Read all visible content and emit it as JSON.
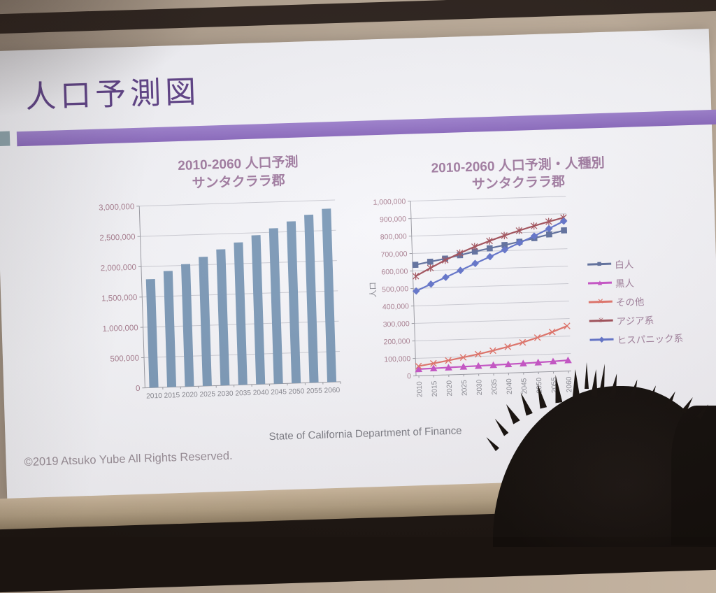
{
  "slide": {
    "title": "人口予測図",
    "source": "State of California Department of Finance",
    "copyright": "©2019 Atsuko Yube All Rights Reserved.",
    "colors": {
      "accent_bar": "#8f6fc2",
      "accent_square": "#8ca3ab",
      "title_text": "#5e4186"
    }
  },
  "chart_data": [
    {
      "type": "bar",
      "title": "2010-2060 人口予測",
      "subtitle": "サンタクララ郡",
      "categories": [
        "2010",
        "2015",
        "2020",
        "2025",
        "2030",
        "2035",
        "2040",
        "2045",
        "2050",
        "2055",
        "2060"
      ],
      "values": [
        1790000,
        1915000,
        2020000,
        2130000,
        2245000,
        2350000,
        2460000,
        2565000,
        2670000,
        2770000,
        2860000
      ],
      "xlabel": "",
      "ylabel": "",
      "ylim": [
        0,
        3000000
      ],
      "ytick_step": 500000,
      "grid": true,
      "bar_color": "#7d9ab8",
      "legend_position": "none"
    },
    {
      "type": "line",
      "title": "2010-2060 人口予測・人種別",
      "subtitle": "サンタクララ郡",
      "categories": [
        "2010",
        "2015",
        "2020",
        "2025",
        "2030",
        "2035",
        "2040",
        "2045",
        "2050",
        "2055",
        "2060"
      ],
      "xlabel": "",
      "ylabel": "人口",
      "ylim": [
        0,
        1000000
      ],
      "ytick_step": 100000,
      "grid": true,
      "legend_position": "right",
      "series": [
        {
          "name": "白人",
          "marker": "square",
          "color": "#5f6f9d",
          "values": [
            635000,
            650000,
            665000,
            682000,
            700000,
            716000,
            732000,
            748000,
            766000,
            785000,
            805000
          ]
        },
        {
          "name": "黒人",
          "marker": "triangle",
          "color": "#c653c6",
          "values": [
            38000,
            40000,
            42000,
            44000,
            46000,
            48000,
            50000,
            52000,
            55000,
            58000,
            62000
          ]
        },
        {
          "name": "その他",
          "marker": "x",
          "color": "#e0736a",
          "values": [
            55000,
            68000,
            82000,
            97000,
            113000,
            130000,
            150000,
            172000,
            197000,
            226000,
            258000
          ]
        },
        {
          "name": "アジア系",
          "marker": "star",
          "color": "#a04f59",
          "values": [
            570000,
            614000,
            656000,
            694000,
            728000,
            758000,
            786000,
            812000,
            836000,
            858000,
            878000
          ]
        },
        {
          "name": "ヒスパニック系",
          "marker": "diamond",
          "color": "#6273c9",
          "values": [
            485000,
            522000,
            558000,
            595000,
            632000,
            668000,
            705000,
            742000,
            778000,
            818000,
            858000
          ]
        }
      ]
    }
  ]
}
